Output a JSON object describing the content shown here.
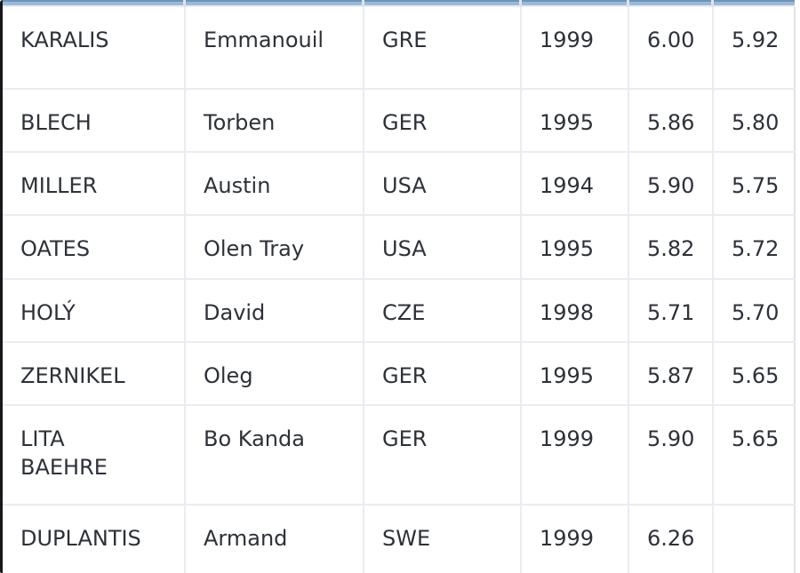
{
  "app": {
    "description_title": "Pole vault results table",
    "accent_header_color": "#9cb9d8",
    "grid_line_color": "#e9ecf0",
    "text_color": "#2d3138"
  },
  "table": {
    "columns_semantic": [
      "last-name",
      "first-name",
      "country",
      "birth-year",
      "mark-1",
      "mark-2"
    ],
    "rows": [
      [
        "KARALIS",
        "Emmanouil",
        "GRE",
        "1999",
        "6.00",
        "5.92"
      ],
      [
        "BLECH",
        "Torben",
        "GER",
        "1995",
        "5.86",
        "5.80"
      ],
      [
        "MILLER",
        "Austin",
        "USA",
        "1994",
        "5.90",
        "5.75"
      ],
      [
        "OATES",
        "Olen Tray",
        "USA",
        "1995",
        "5.82",
        "5.72"
      ],
      [
        "HOLÝ",
        "David",
        "CZE",
        "1998",
        "5.71",
        "5.70"
      ],
      [
        "ZERNIKEL",
        "Oleg",
        "GER",
        "1995",
        "5.87",
        "5.65"
      ],
      [
        "LITA BAEHRE",
        "Bo Kanda",
        "GER",
        "1999",
        "5.90",
        "5.65"
      ],
      [
        "DUPLANTIS",
        "Armand",
        "SWE",
        "1999",
        "6.26",
        ""
      ]
    ]
  }
}
